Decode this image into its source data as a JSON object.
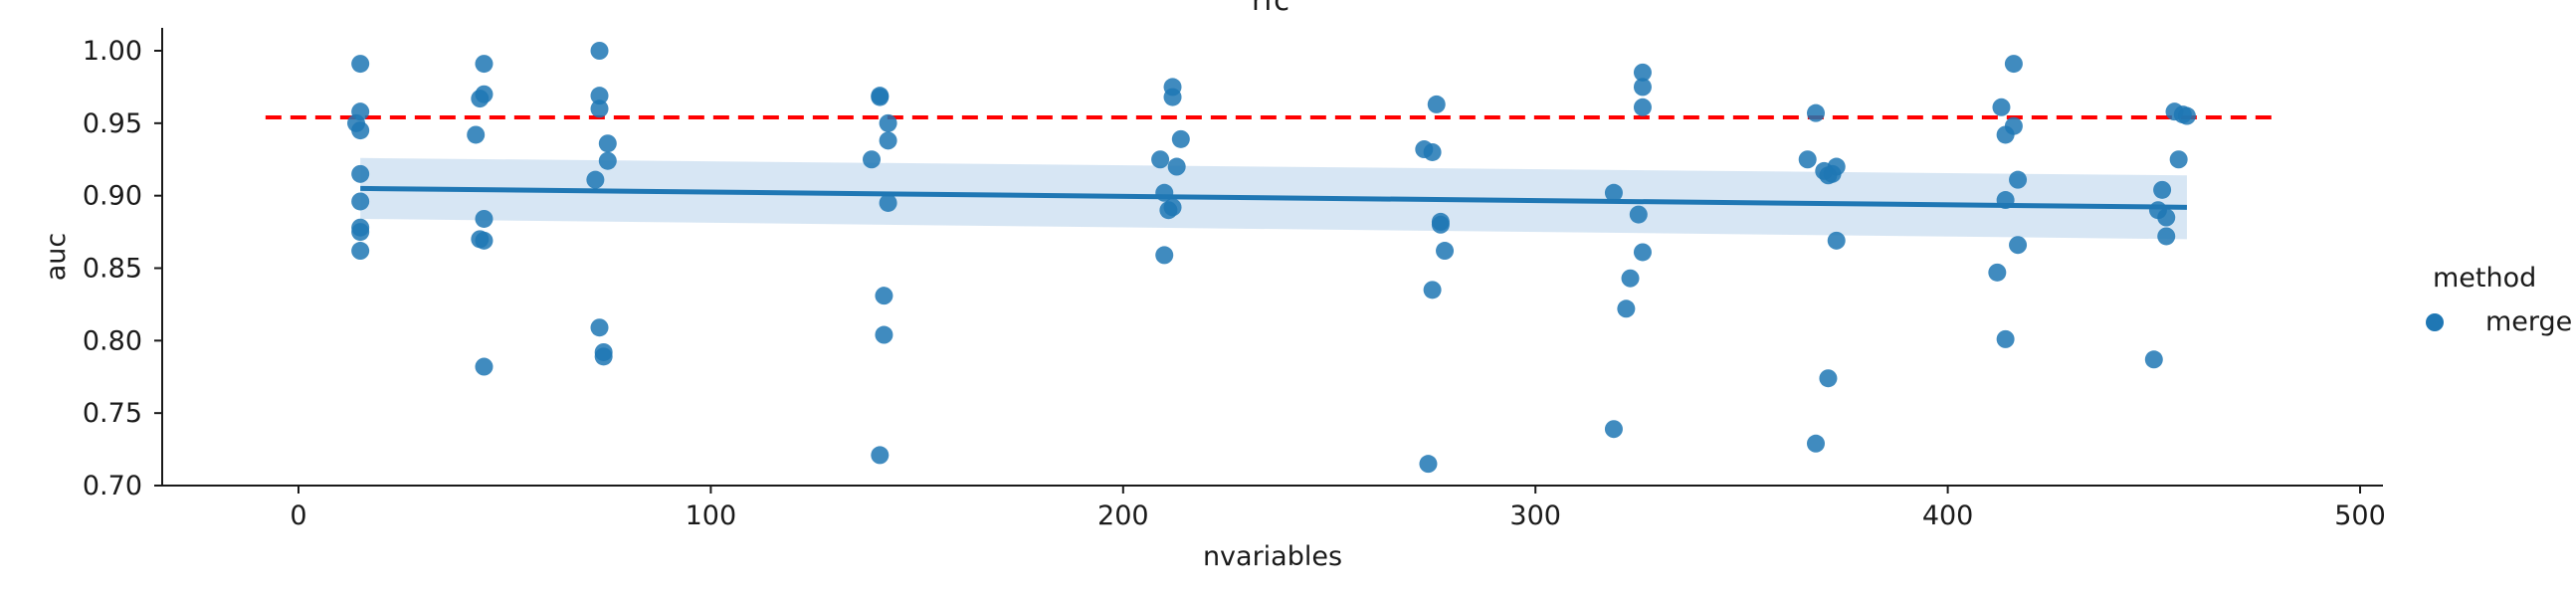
{
  "chart_data": {
    "type": "scatter",
    "title": "rfc",
    "xlabel": "nvariables",
    "ylabel": "auc",
    "xlim": [
      -33,
      503
    ],
    "ylim": [
      0.7,
      1.015
    ],
    "xticks": [
      0,
      100,
      200,
      300,
      400,
      500
    ],
    "yticks": [
      0.7,
      0.75,
      0.8,
      0.85,
      0.9,
      0.95,
      1.0
    ],
    "grid": false,
    "legend": {
      "title": "method",
      "placement": "right",
      "entries": [
        "merge"
      ]
    },
    "colors": {
      "points": "#1f77b4",
      "regression_line": "#1f77b4",
      "confidence_band": "#c6dbef",
      "reference_line": "#ff0000"
    },
    "reference_line": {
      "y": 0.954,
      "x_range": [
        -8,
        480
      ],
      "style": "dashed"
    },
    "regression": {
      "x_range": [
        15,
        458
      ],
      "y_start": 0.905,
      "y_end": 0.892,
      "ci_start": [
        0.884,
        0.926
      ],
      "ci_end": [
        0.87,
        0.914
      ]
    },
    "series": [
      {
        "name": "merge",
        "points": [
          [
            15,
            0.991
          ],
          [
            15,
            0.958
          ],
          [
            14,
            0.95
          ],
          [
            15,
            0.945
          ],
          [
            15,
            0.915
          ],
          [
            15,
            0.896
          ],
          [
            15,
            0.878
          ],
          [
            15,
            0.875
          ],
          [
            15,
            0.862
          ],
          [
            45,
            0.991
          ],
          [
            45,
            0.97
          ],
          [
            44,
            0.967
          ],
          [
            43,
            0.942
          ],
          [
            45,
            0.884
          ],
          [
            44,
            0.87
          ],
          [
            45,
            0.869
          ],
          [
            45,
            0.782
          ],
          [
            73,
            1.0
          ],
          [
            73,
            0.969
          ],
          [
            73,
            0.96
          ],
          [
            75,
            0.936
          ],
          [
            75,
            0.924
          ],
          [
            72,
            0.911
          ],
          [
            73,
            0.809
          ],
          [
            74,
            0.792
          ],
          [
            74,
            0.789
          ],
          [
            141,
            0.969
          ],
          [
            141,
            0.968
          ],
          [
            143,
            0.95
          ],
          [
            143,
            0.938
          ],
          [
            139,
            0.925
          ],
          [
            143,
            0.895
          ],
          [
            142,
            0.831
          ],
          [
            142,
            0.804
          ],
          [
            141,
            0.721
          ],
          [
            212,
            0.975
          ],
          [
            212,
            0.968
          ],
          [
            214,
            0.939
          ],
          [
            209,
            0.925
          ],
          [
            213,
            0.92
          ],
          [
            210,
            0.902
          ],
          [
            212,
            0.892
          ],
          [
            211,
            0.89
          ],
          [
            210,
            0.859
          ],
          [
            276,
            0.963
          ],
          [
            273,
            0.932
          ],
          [
            275,
            0.93
          ],
          [
            277,
            0.882
          ],
          [
            277,
            0.88
          ],
          [
            278,
            0.862
          ],
          [
            275,
            0.835
          ],
          [
            274,
            0.715
          ],
          [
            326,
            0.985
          ],
          [
            326,
            0.975
          ],
          [
            326,
            0.961
          ],
          [
            319,
            0.902
          ],
          [
            325,
            0.887
          ],
          [
            326,
            0.861
          ],
          [
            323,
            0.843
          ],
          [
            322,
            0.822
          ],
          [
            319,
            0.739
          ],
          [
            368,
            0.957
          ],
          [
            366,
            0.925
          ],
          [
            373,
            0.92
          ],
          [
            370,
            0.917
          ],
          [
            372,
            0.915
          ],
          [
            371,
            0.914
          ],
          [
            373,
            0.869
          ],
          [
            371,
            0.774
          ],
          [
            368,
            0.729
          ],
          [
            416,
            0.991
          ],
          [
            413,
            0.961
          ],
          [
            416,
            0.948
          ],
          [
            414,
            0.942
          ],
          [
            417,
            0.911
          ],
          [
            414,
            0.897
          ],
          [
            417,
            0.866
          ],
          [
            412,
            0.847
          ],
          [
            414,
            0.801
          ],
          [
            455,
            0.958
          ],
          [
            457,
            0.956
          ],
          [
            458,
            0.955
          ],
          [
            456,
            0.925
          ],
          [
            452,
            0.904
          ],
          [
            451,
            0.89
          ],
          [
            453,
            0.885
          ],
          [
            453,
            0.872
          ],
          [
            450,
            0.787
          ]
        ]
      }
    ]
  }
}
